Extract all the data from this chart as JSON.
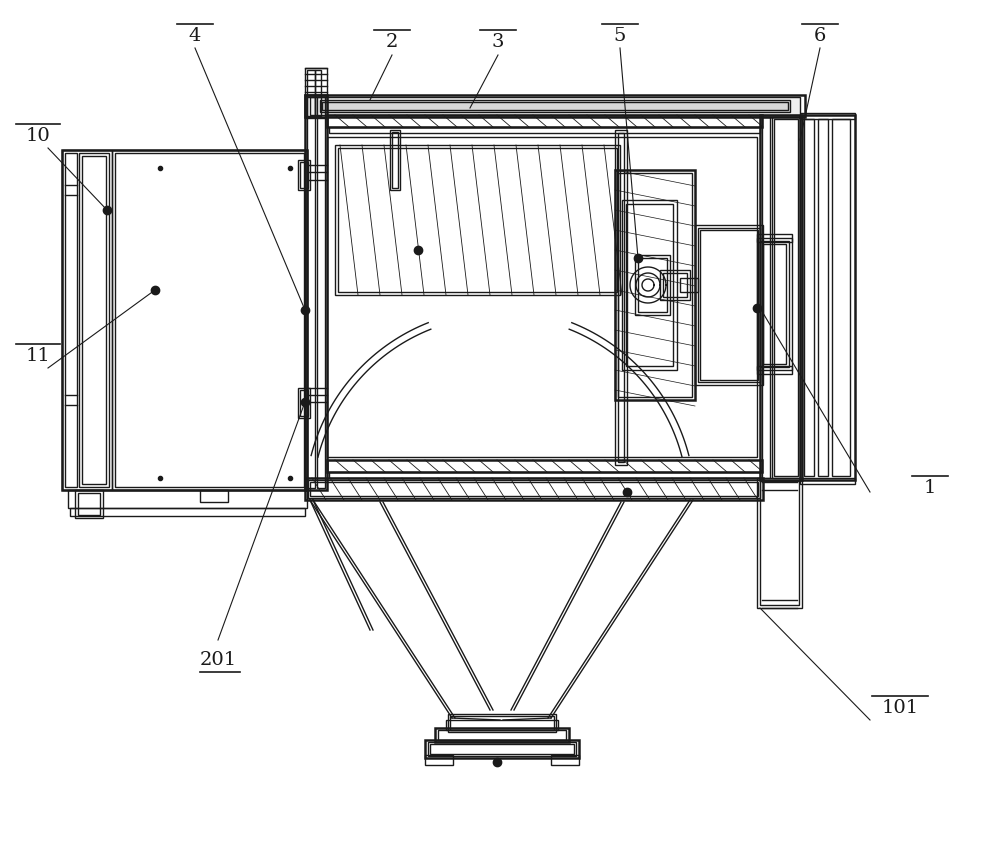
{
  "bg_color": "#ffffff",
  "lc": "#1a1a1a",
  "lw": 1.0,
  "tlw": 1.8
}
